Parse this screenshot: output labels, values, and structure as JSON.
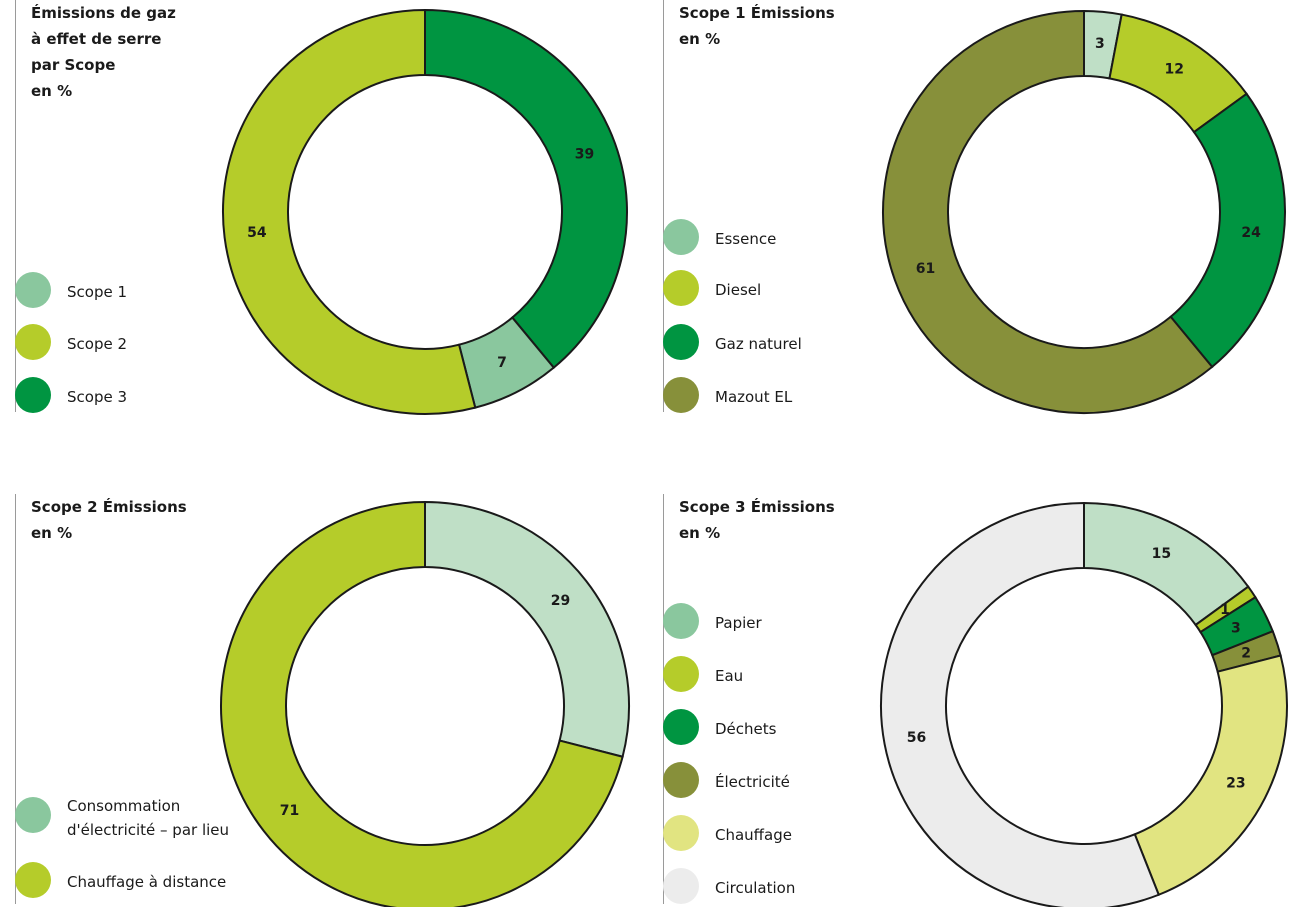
{
  "colors": {
    "scope1": "#8ac79e",
    "scope2": "#b5cc2a",
    "scope3": "#009541",
    "mazout": "#87903a",
    "papier": "#bfdfc6",
    "chauffage": "#e1e481",
    "circulation": "#ececec",
    "outline": "#1a1a1a"
  },
  "chart_data": [
    {
      "type": "pie",
      "title": "Émissions de gaz\nà effet de serre\npar Scope\nen %",
      "series": [
        {
          "label": "Scope 3",
          "value": 39,
          "color": "#009541"
        },
        {
          "label": "Scope 1",
          "value": 7,
          "color": "#8ac79e"
        },
        {
          "label": "Scope 2",
          "value": 54,
          "color": "#b5cc2a"
        }
      ],
      "legend": [
        {
          "label": "Scope 1",
          "color": "#8ac79e"
        },
        {
          "label": "Scope 2",
          "color": "#b5cc2a"
        },
        {
          "label": "Scope 3",
          "color": "#009541"
        }
      ]
    },
    {
      "type": "pie",
      "title": "Scope 1 Émissions\nen %",
      "series": [
        {
          "label": "Essence",
          "value": 3,
          "color": "#bfdfc6"
        },
        {
          "label": "Diesel",
          "value": 12,
          "color": "#b5cc2a"
        },
        {
          "label": "Gaz naturel",
          "value": 24,
          "color": "#009541"
        },
        {
          "label": "Mazout EL",
          "value": 61,
          "color": "#87903a"
        }
      ],
      "legend": [
        {
          "label": "Essence",
          "color": "#8ac79e"
        },
        {
          "label": "Diesel",
          "color": "#b5cc2a"
        },
        {
          "label": "Gaz naturel",
          "color": "#009541"
        },
        {
          "label": "Mazout EL",
          "color": "#87903a"
        }
      ]
    },
    {
      "type": "pie",
      "title": "Scope 2 Émissions\nen %",
      "series": [
        {
          "label": "Consommation d'électricité – par lieu",
          "value": 29,
          "color": "#bfdfc6"
        },
        {
          "label": "Chauffage à distance",
          "value": 71,
          "color": "#b5cc2a"
        }
      ],
      "legend": [
        {
          "label": "Consommation\nd'électricité – par lieu",
          "color": "#8ac79e"
        },
        {
          "label": "Chauffage à distance",
          "color": "#b5cc2a"
        }
      ]
    },
    {
      "type": "pie",
      "title": "Scope 3 Émissions\nen %",
      "series": [
        {
          "label": "Papier",
          "value": 15,
          "color": "#bfdfc6"
        },
        {
          "label": "Eau",
          "value": 1,
          "color": "#b5cc2a"
        },
        {
          "label": "Déchets",
          "value": 3,
          "color": "#009541"
        },
        {
          "label": "Électricité",
          "value": 2,
          "color": "#87903a"
        },
        {
          "label": "Chauffage",
          "value": 23,
          "color": "#e1e481"
        },
        {
          "label": "Circulation",
          "value": 56,
          "color": "#ececec"
        }
      ],
      "legend": [
        {
          "label": "Papier",
          "color": "#8ac79e"
        },
        {
          "label": "Eau",
          "color": "#b5cc2a"
        },
        {
          "label": "Déchets",
          "color": "#009541"
        },
        {
          "label": "Électricité",
          "color": "#87903a"
        },
        {
          "label": "Chauffage",
          "color": "#e1e481"
        },
        {
          "label": "Circulation",
          "color": "#ececec"
        }
      ]
    }
  ]
}
